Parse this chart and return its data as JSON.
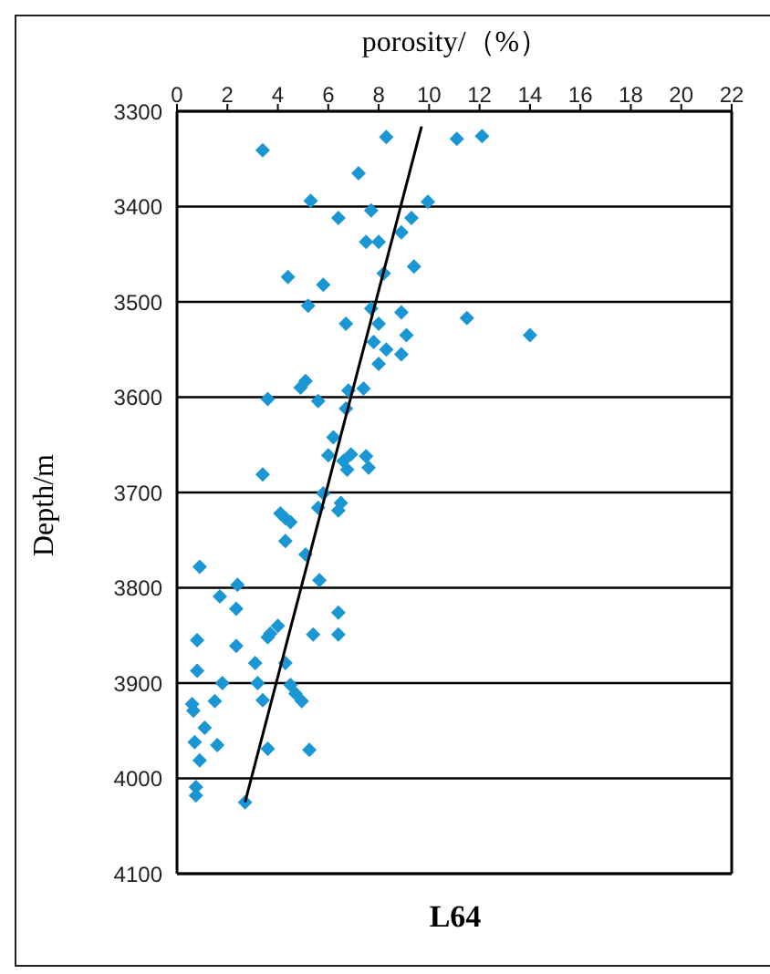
{
  "chart_data": {
    "type": "scatter",
    "title": "L64",
    "xlabel": "porosity/（%）",
    "ylabel": "Depth/m",
    "xlim": [
      0,
      22
    ],
    "xticks": [
      0,
      2,
      4,
      6,
      8,
      10,
      12,
      14,
      16,
      18,
      20,
      22
    ],
    "ylim": [
      4100,
      3300
    ],
    "yticks": [
      3300,
      3400,
      3500,
      3600,
      3700,
      3800,
      3900,
      4000,
      4100
    ],
    "grid": "y",
    "series": [
      {
        "marker": "diamond",
        "color": "#1a96d4",
        "x": [
          3.4,
          8.3,
          11.1,
          12.1,
          7.2,
          5.3,
          9.95,
          7.7,
          6.4,
          9.3,
          8.9,
          7.5,
          8.0,
          9.4,
          8.2,
          4.4,
          5.8,
          5.2,
          7.7,
          8.9,
          11.5,
          6.7,
          8.0,
          14.0,
          9.1,
          7.8,
          8.3,
          8.9,
          8.0,
          5.1,
          4.9,
          6.8,
          7.4,
          3.6,
          5.6,
          6.7,
          6.2,
          6.0,
          6.9,
          7.5,
          6.6,
          6.75,
          7.6,
          3.4,
          5.8,
          5.6,
          6.5,
          6.4,
          4.1,
          4.3,
          4.5,
          4.3,
          5.1,
          0.9,
          5.65,
          2.4,
          1.7,
          2.35,
          6.4,
          4.0,
          3.7,
          3.6,
          5.4,
          6.4,
          0.8,
          2.35,
          4.3,
          3.1,
          0.8,
          1.8,
          3.2,
          4.5,
          4.7,
          4.95,
          1.5,
          3.4,
          0.6,
          0.65,
          1.1,
          0.7,
          1.6,
          3.6,
          5.25,
          0.9,
          0.75,
          0.75,
          2.7
        ],
        "values": [
          3341,
          3327,
          3329,
          3326,
          3365,
          3394,
          3395,
          3404,
          3412,
          3412,
          3427,
          3437,
          3437,
          3463,
          3470,
          3474,
          3482,
          3504,
          3507,
          3511,
          3517,
          3523,
          3523,
          3535,
          3535,
          3542,
          3550,
          3555,
          3565,
          3583,
          3590,
          3593,
          3591,
          3602,
          3604,
          3612,
          3642,
          3661,
          3660,
          3662,
          3667,
          3676,
          3674,
          3681,
          3701,
          3716,
          3711,
          3719,
          3722,
          3727,
          3731,
          3751,
          3765,
          3778,
          3792,
          3797,
          3809,
          3822,
          3826,
          3840,
          3848,
          3852,
          3849,
          3849,
          3855,
          3861,
          3879,
          3879,
          3887,
          3900,
          3900,
          3902,
          3911,
          3919,
          3919,
          3918,
          3922,
          3929,
          3947,
          3962,
          3965,
          3969,
          3970,
          3981,
          4009,
          4018,
          4025
        ]
      },
      {
        "type": "line",
        "color": "#000000",
        "x": [
          2.7,
          9.7
        ],
        "values": [
          4025,
          3316
        ]
      }
    ]
  }
}
